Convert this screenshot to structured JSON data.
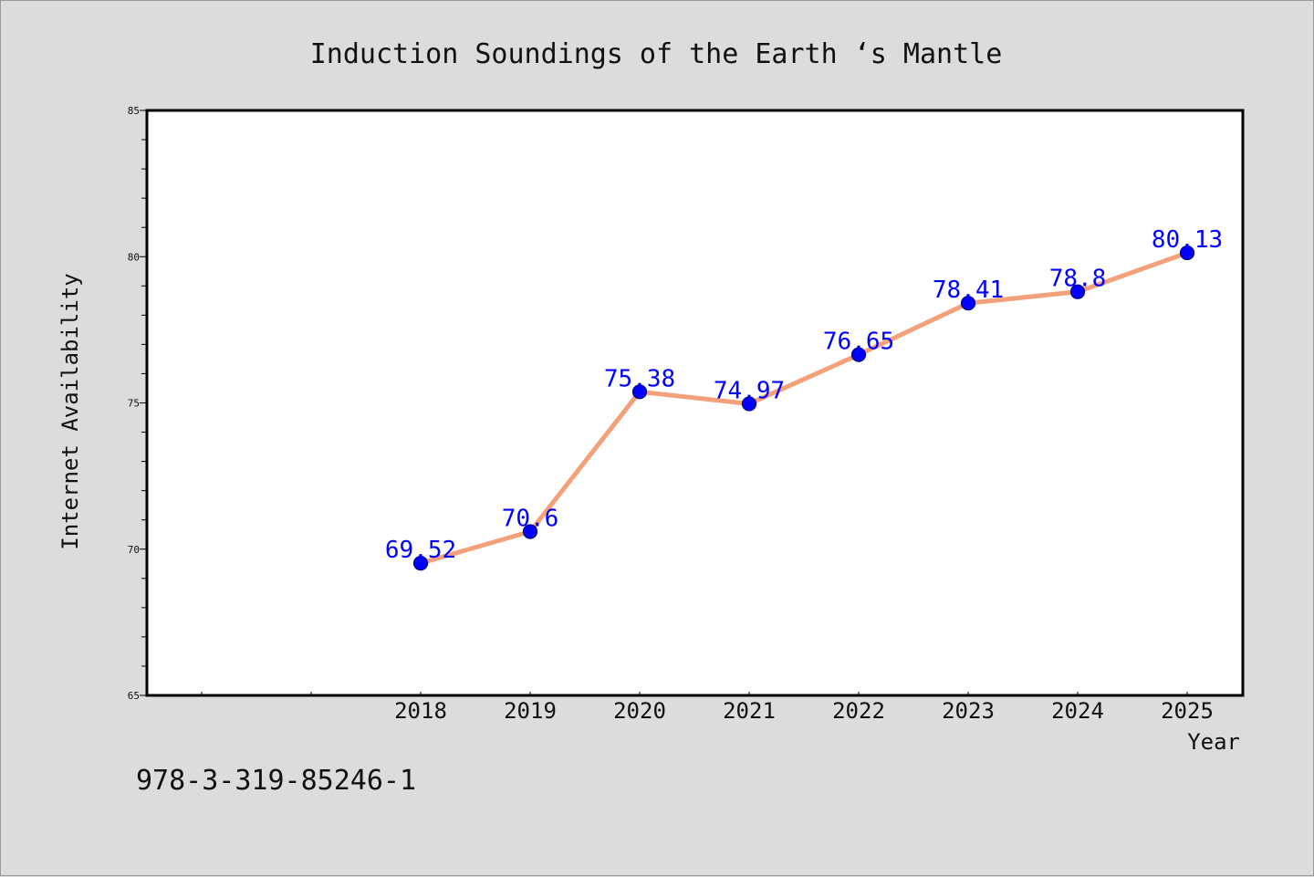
{
  "chart_data": {
    "type": "line",
    "title": "Induction Soundings of the Earth ‘s Mantle",
    "xlabel": "Year",
    "ylabel": "Internet Availability",
    "categories": [
      "2018",
      "2019",
      "2020",
      "2021",
      "2022",
      "2023",
      "2024",
      "2025"
    ],
    "series": [
      {
        "values": [
          69.52,
          70.6,
          75.38,
          74.97,
          76.65,
          78.41,
          78.8,
          80.13
        ],
        "data_labels": [
          "69.52",
          "70.6",
          "75.38",
          "74.97",
          "76.65",
          "78.41",
          "78.8",
          "80.13"
        ],
        "line_color": "#f4a07a",
        "marker_color": "#0000ff"
      }
    ],
    "ylim": [
      65,
      85
    ],
    "yticks": [
      "65",
      "70",
      "75",
      "80",
      "85"
    ],
    "grid": false,
    "legend": "none"
  },
  "footer": {
    "code": "978-3-319-85246-1"
  },
  "colors": {
    "background": "#dcdcdc",
    "plot_background": "#ffffff",
    "line": "#f4a07a",
    "marker": "#0000ff",
    "data_label": "#0000ff"
  }
}
